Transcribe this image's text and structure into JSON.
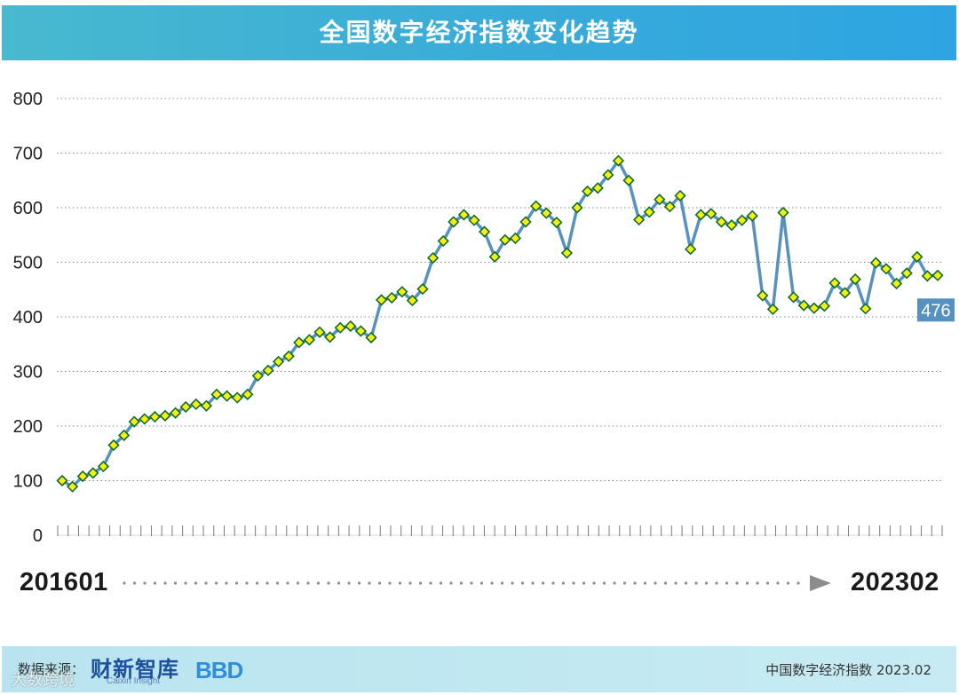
{
  "header": {
    "title": "全国数字经济指数变化趋势"
  },
  "chart_data": {
    "type": "line",
    "title": "全国数字经济指数变化趋势",
    "x_start": "201601",
    "x_end": "202302",
    "ylim": [
      0,
      800
    ],
    "yticks": [
      "800",
      "700",
      "600",
      "500",
      "400",
      "300",
      "200",
      "100",
      "0"
    ],
    "grid": true,
    "series": [
      {
        "values": [
          100,
          89,
          108,
          114,
          126,
          165,
          183,
          208,
          213,
          217,
          219,
          224,
          235,
          240,
          237,
          258,
          255,
          252,
          258,
          292,
          302,
          318,
          328,
          353,
          358,
          372,
          363,
          380,
          383,
          374,
          362,
          431,
          435,
          446,
          430,
          451,
          508,
          539,
          574,
          587,
          577,
          556,
          510,
          541,
          544,
          574,
          603,
          590,
          573,
          517,
          600,
          630,
          636,
          660,
          686,
          650,
          578,
          592,
          615,
          602,
          622,
          524,
          587,
          589,
          574,
          568,
          577,
          585,
          439,
          414,
          591,
          436,
          421,
          416,
          420,
          462,
          444,
          469,
          415,
          499,
          488,
          461,
          480,
          510,
          475,
          476
        ]
      }
    ],
    "last_value_label": "476",
    "line_color": "#5791c0",
    "marker_fill": "#f6ef16",
    "marker_stroke": "#116b2f",
    "label_bg": "#5791c0"
  },
  "footer": {
    "source_label": "数据来源：",
    "logo_text": "财新智库",
    "logo_sub": "Caixin Insight",
    "logo2_text": "BBD",
    "note": "中国数字经济指数 2023.02",
    "watermark": "大数跨境"
  }
}
